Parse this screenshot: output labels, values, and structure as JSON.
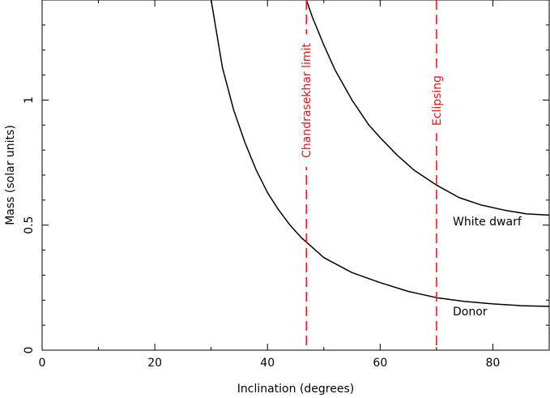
{
  "chart_data": {
    "type": "line",
    "xlabel": "Inclination (degrees)",
    "ylabel": "Mass (solar units)",
    "xlim": [
      0,
      90
    ],
    "ylim": [
      0,
      1.4
    ],
    "xticks": [
      0,
      20,
      40,
      60,
      80
    ],
    "xtick_labels": [
      "0",
      "20",
      "40",
      "60",
      "80"
    ],
    "yticks": [
      0,
      0.5,
      1
    ],
    "ytick_labels": [
      "0",
      "0.5",
      "1"
    ],
    "grid": false,
    "series": [
      {
        "name": "White dwarf",
        "color": "#000000",
        "x": [
          46.9,
          48,
          50,
          52,
          55,
          58,
          60,
          63,
          66,
          70,
          74,
          78,
          82,
          86,
          90
        ],
        "y": [
          1.4,
          1.33,
          1.22,
          1.12,
          1.0,
          0.9,
          0.85,
          0.78,
          0.72,
          0.66,
          0.61,
          0.58,
          0.56,
          0.545,
          0.54
        ]
      },
      {
        "name": "Donor",
        "color": "#000000",
        "x": [
          30,
          32,
          34,
          36,
          38,
          40,
          42,
          44,
          46,
          48,
          50,
          55,
          60,
          65,
          70,
          75,
          80,
          85,
          90
        ],
        "y": [
          1.4,
          1.13,
          0.96,
          0.83,
          0.72,
          0.63,
          0.56,
          0.5,
          0.45,
          0.41,
          0.37,
          0.31,
          0.27,
          0.235,
          0.21,
          0.195,
          0.185,
          0.178,
          0.175
        ]
      }
    ],
    "reference_lines": [
      {
        "x": 46.9,
        "label": "Chandrasekhar limit",
        "color": "#e8141c",
        "style": "dashed"
      },
      {
        "x": 70,
        "label": "Eclipsing",
        "color": "#e8141c",
        "style": "dashed"
      }
    ]
  }
}
